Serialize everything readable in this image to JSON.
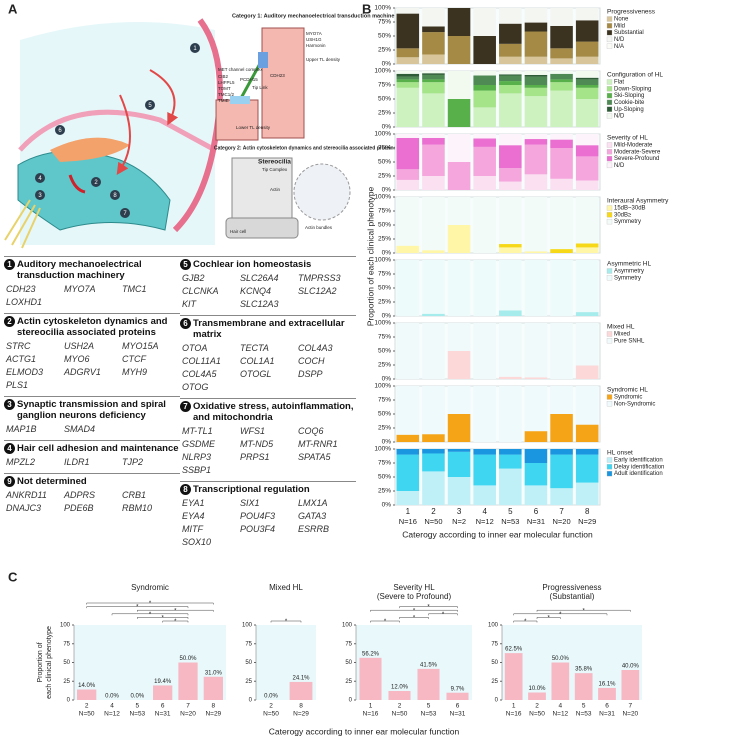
{
  "panel_labels": [
    "A",
    "B",
    "C"
  ],
  "illustration": {
    "category1_title": "Category 1: Auditory mechanoelectrical transduction machinery",
    "category2_title": "Category 2: Actin cytoskeleton dynamics and stereocilia associated proteins",
    "labels": [
      "MYO7A",
      "USH1G",
      "Harmonin",
      "CDH23",
      "PCDH15",
      "MET channel complex",
      "CIB2",
      "LHFPL5",
      "TOMT",
      "TMC1/2",
      "TMIE",
      "Tip Link",
      "Upper TL density",
      "Lower TL density",
      "Stereocilia",
      "Tip Complex",
      "Actin",
      "Actin bundles",
      "Hair cell"
    ],
    "markers": [
      "1",
      "2",
      "3",
      "4",
      "5",
      "6",
      "7",
      "8"
    ]
  },
  "gene_table": {
    "columns": [
      [
        {
          "number": "1",
          "name": "Auditory mechanoelectrical transduction machinery",
          "genes": [
            "CDH23",
            "MYO7A",
            "TMC1",
            "LOXHD1"
          ]
        },
        {
          "number": "2",
          "name": "Actin cytoskeleton dynamics and stereocilia associated proteins",
          "genes": [
            "STRC",
            "USH2A",
            "MYO15A",
            "ACTG1",
            "MYO6",
            "CTCF",
            "ELMOD3",
            "ADGRV1",
            "MYH9",
            "PLS1"
          ]
        },
        {
          "number": "3",
          "name": "Synaptic transmission and spiral ganglion neurons deficiency",
          "genes": [
            "MAP1B",
            "SMAD4"
          ]
        },
        {
          "number": "4",
          "name": "Hair cell adhesion and maintenance",
          "genes": [
            "MPZL2",
            "ILDR1",
            "TJP2"
          ]
        },
        {
          "number": "9",
          "name": "Not determined",
          "genes": [
            "ANKRD11",
            "ADPRS",
            "CRB1",
            "DNAJC3",
            "PDE6B",
            "RBM10"
          ]
        }
      ],
      [
        {
          "number": "5",
          "name": "Cochlear ion homeostasis",
          "genes": [
            "GJB2",
            "SLC26A4",
            "TMPRSS3",
            "CLCNKA",
            "KCNQ4",
            "SLC12A2",
            "KIT",
            "SLC12A3"
          ]
        },
        {
          "number": "6",
          "name": "Transmembrane and extracellular matrix",
          "genes": [
            "OTOA",
            "TECTA",
            "COL4A3",
            "COL11A1",
            "COL1A1",
            "COCH",
            "COL4A5",
            "OTOGL",
            "DSPP",
            "OTOG"
          ]
        },
        {
          "number": "7",
          "name": "Oxidative stress, autoinflammation, and mitochondria",
          "genes": [
            "MT-TL1",
            "WFS1",
            "COQ6",
            "GSDME",
            "MT-ND5",
            "MT-RNR1",
            "NLRP3",
            "PRPS1",
            "SPATA5",
            "SSBP1"
          ]
        },
        {
          "number": "8",
          "name": "Transcriptional regulation",
          "genes": [
            "EYA1",
            "SIX1",
            "LMX1A",
            "EYA4",
            "POU4F3",
            "GATA3",
            "MITF",
            "POU3F4",
            "ESRRB",
            "SOX10"
          ]
        }
      ]
    ]
  },
  "chart_data": [
    {
      "type": "stacked_bar_panels",
      "categories": [
        "1",
        "2",
        "3",
        "4",
        "5",
        "6",
        "7",
        "8"
      ],
      "n_labels": [
        "N=16",
        "N=50",
        "N=2",
        "N=12",
        "N=53",
        "N=31",
        "N=20",
        "N=29"
      ],
      "xlabel": "Caterogy according to inner ear molecular function",
      "ylabel": "Proportion of each clinical phenotype",
      "ylim": [
        0,
        100
      ],
      "yticks": [
        {
          "value": 0,
          "label": "0%"
        },
        {
          "value": 25,
          "label": "25%"
        },
        {
          "value": 50,
          "label": "50%"
        },
        {
          "value": 75,
          "label": "75%"
        },
        {
          "value": 100,
          "label": "100%"
        }
      ],
      "panels": [
        {
          "title": "Progressiveness",
          "series": [
            {
              "name": "None",
              "color": "#d8c69a",
              "values": [
                12,
                17,
                0,
                0,
                13,
                13,
                10,
                13
              ]
            },
            {
              "name": "Mild",
              "color": "#a48a45",
              "values": [
                16,
                40,
                50,
                0,
                23,
                45,
                18,
                27
              ]
            },
            {
              "name": "Substantial",
              "color": "#3b3320",
              "values": [
                62,
                10,
                50,
                50,
                36,
                16,
                40,
                38
              ]
            },
            {
              "name": "N/D",
              "color": "#f3f6f1",
              "values": [
                10,
                33,
                0,
                50,
                28,
                26,
                32,
                22
              ]
            },
            {
              "name": "N/A",
              "color": "#fbfbf7",
              "values": [
                0,
                0,
                0,
                0,
                0,
                0,
                0,
                0
              ]
            }
          ]
        },
        {
          "title": "Configuration of HL",
          "series": [
            {
              "name": "Flat",
              "color": "#cdf2c0",
              "values": [
                70,
                60,
                0,
                35,
                60,
                55,
                65,
                50
              ]
            },
            {
              "name": "Down-Sloping",
              "color": "#a6e48a",
              "values": [
                10,
                20,
                0,
                30,
                15,
                15,
                15,
                20
              ]
            },
            {
              "name": "Ski-Sloping",
              "color": "#57b04a",
              "values": [
                5,
                5,
                50,
                10,
                7,
                5,
                5,
                5
              ]
            },
            {
              "name": "Cookie-bite",
              "color": "#4f8a55",
              "values": [
                5,
                8,
                0,
                17,
                10,
                15,
                10,
                10
              ]
            },
            {
              "name": "Up-Sloping",
              "color": "#2e5c36",
              "values": [
                5,
                3,
                0,
                0,
                2,
                3,
                0,
                3
              ]
            },
            {
              "name": "N/D",
              "color": "#f2faf0",
              "values": [
                5,
                4,
                50,
                8,
                6,
                7,
                5,
                12
              ]
            }
          ]
        },
        {
          "title": "Severity of HL",
          "series": [
            {
              "name": "Mild-Moderate",
              "color": "#fbe0f2",
              "values": [
                18,
                25,
                0,
                25,
                15,
                28,
                20,
                17
              ]
            },
            {
              "name": "Moderate-Severe",
              "color": "#f5a6dc",
              "values": [
                19,
                56,
                50,
                52,
                24,
                53,
                55,
                43
              ]
            },
            {
              "name": "Severe-Profound",
              "color": "#ea6fd0",
              "values": [
                56,
                12,
                0,
                15,
                41,
                10,
                15,
                20
              ]
            },
            {
              "name": "N/D",
              "color": "#fdf3fa",
              "values": [
                7,
                7,
                50,
                8,
                20,
                9,
                10,
                20
              ]
            }
          ]
        },
        {
          "title": "Interaural Asymmetry",
          "series": [
            {
              "name": "15dB~30dB",
              "color": "#fff6a8",
              "values": [
                13,
                5,
                50,
                0,
                10,
                3,
                0,
                10
              ]
            },
            {
              "name": "30dB≥",
              "color": "#f6d818",
              "values": [
                0,
                0,
                0,
                0,
                6,
                0,
                7,
                7
              ]
            },
            {
              "name": "Symmetry",
              "color": "#f2fbf8",
              "values": [
                87,
                95,
                50,
                100,
                84,
                97,
                93,
                83
              ]
            }
          ]
        },
        {
          "title": "Asymmetric HL",
          "series": [
            {
              "name": "Asymmetry",
              "color": "#a6ecec",
              "values": [
                0,
                4,
                0,
                0,
                10,
                0,
                0,
                7
              ]
            },
            {
              "name": "Symmetry",
              "color": "#eefbfb",
              "values": [
                100,
                96,
                100,
                100,
                90,
                100,
                100,
                93
              ]
            }
          ]
        },
        {
          "title": "Mixed HL",
          "series": [
            {
              "name": "Mixed",
              "color": "#fcd8d8",
              "values": [
                0,
                0,
                50,
                0,
                4,
                3,
                0,
                24.1
              ]
            },
            {
              "name": "Pure SNHL",
              "color": "#f0fafa",
              "values": [
                100,
                100,
                50,
                100,
                96,
                97,
                100,
                75.9
              ]
            }
          ]
        },
        {
          "title": "Syndromic HL",
          "series": [
            {
              "name": "Syndromic",
              "color": "#f5a418",
              "values": [
                13,
                14,
                50,
                0,
                0,
                19.4,
                50,
                31
              ]
            },
            {
              "name": "Non-Syndromic",
              "color": "#eefafb",
              "values": [
                87,
                86,
                50,
                100,
                100,
                80.6,
                50,
                69
              ]
            }
          ]
        },
        {
          "title": "HL onset",
          "series": [
            {
              "name": "Early identification",
              "color": "#bff0f8",
              "values": [
                25,
                60,
                50,
                35,
                65,
                35,
                30,
                40
              ]
            },
            {
              "name": "Delay identification",
              "color": "#3ed6f0",
              "values": [
                65,
                32,
                45,
                55,
                25,
                40,
                60,
                50
              ]
            },
            {
              "name": "Adult identification",
              "color": "#1a96e0",
              "values": [
                10,
                8,
                5,
                10,
                10,
                25,
                10,
                10
              ]
            }
          ]
        }
      ]
    },
    {
      "type": "bar",
      "title": "Syndromic",
      "ylabel": [
        "Proportion of",
        "each clinical phenotype"
      ],
      "xlabel": "Caterogy according to inner ear molecular function",
      "categories": [
        "2",
        "4",
        "5",
        "6",
        "7",
        "8"
      ],
      "n_labels": [
        "N=50",
        "N=12",
        "N=53",
        "N=31",
        "N=20",
        "N=29"
      ],
      "values": [
        14,
        0,
        0,
        19.4,
        50,
        31
      ],
      "value_labels": [
        "14.0%",
        "0.0%",
        "0.0%",
        "19.4%",
        "50.0%",
        "31.0%"
      ],
      "color": "#f7b8c4",
      "ylim": [
        0,
        100
      ],
      "yticks": [
        0,
        25,
        50,
        75,
        100
      ],
      "significance": [
        {
          "from": 3,
          "to": 4,
          "label": "*"
        },
        {
          "from": 2,
          "to": 4,
          "label": "*"
        },
        {
          "from": 1,
          "to": 4,
          "label": "*"
        },
        {
          "from": 2,
          "to": 5,
          "label": "*"
        },
        {
          "from": 0,
          "to": 4,
          "label": "*"
        },
        {
          "from": 0,
          "to": 5,
          "label": "*"
        }
      ]
    },
    {
      "type": "bar",
      "title": "Mixed HL",
      "categories": [
        "2",
        "8"
      ],
      "n_labels": [
        "N=50",
        "N=29"
      ],
      "values": [
        0,
        24.1
      ],
      "value_labels": [
        "0.0%",
        "24.1%"
      ],
      "color": "#f7b8c4",
      "ylim": [
        0,
        100
      ],
      "yticks": [
        0,
        25,
        50,
        75,
        100
      ],
      "significance": [
        {
          "from": 0,
          "to": 1,
          "label": "*"
        }
      ]
    },
    {
      "type": "bar",
      "title": "Severity HL",
      "subtitle": "(Severe to Profound)",
      "categories": [
        "1",
        "2",
        "5",
        "6"
      ],
      "n_labels": [
        "N=16",
        "N=50",
        "N=53",
        "N=31"
      ],
      "values": [
        56.2,
        12,
        41.5,
        9.7
      ],
      "value_labels": [
        "56.2%",
        "12.0%",
        "41.5%",
        "9.7%"
      ],
      "color": "#f7b8c4",
      "ylim": [
        0,
        100
      ],
      "yticks": [
        0,
        25,
        50,
        75,
        100
      ],
      "significance": [
        {
          "from": 0,
          "to": 1,
          "label": "*"
        },
        {
          "from": 1,
          "to": 2,
          "label": "*"
        },
        {
          "from": 2,
          "to": 3,
          "label": "*"
        },
        {
          "from": 0,
          "to": 3,
          "label": "*"
        },
        {
          "from": 1,
          "to": 3,
          "label": "*"
        }
      ]
    },
    {
      "type": "bar",
      "title": "Progressiveness",
      "subtitle": "(Substantial)",
      "categories": [
        "1",
        "2",
        "4",
        "5",
        "6",
        "7"
      ],
      "n_labels": [
        "N=16",
        "N=50",
        "N=12",
        "N=53",
        "N=31",
        "N=20"
      ],
      "values": [
        62.5,
        10,
        50,
        35.8,
        16.1,
        40
      ],
      "value_labels": [
        "62.5%",
        "10.0%",
        "50.0%",
        "35.8%",
        "16.1%",
        "40.0%"
      ],
      "color": "#f7b8c4",
      "ylim": [
        0,
        100
      ],
      "yticks": [
        0,
        25,
        50,
        75,
        100
      ],
      "significance": [
        {
          "from": 0,
          "to": 1,
          "label": "*"
        },
        {
          "from": 1,
          "to": 2,
          "label": "*"
        },
        {
          "from": 0,
          "to": 4,
          "label": "*"
        },
        {
          "from": 1,
          "to": 5,
          "label": "*"
        }
      ]
    }
  ]
}
